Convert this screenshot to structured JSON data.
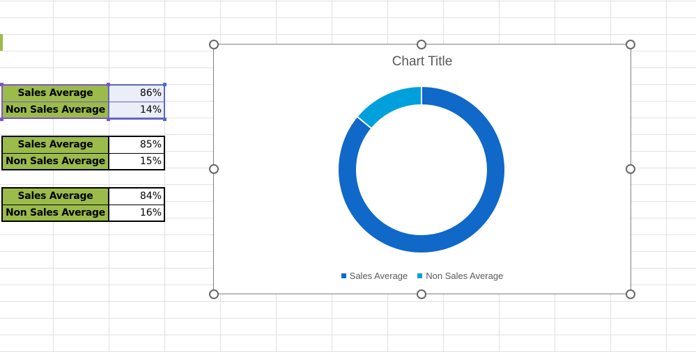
{
  "tables": [
    {
      "selected": true,
      "rows": [
        {
          "label": "Sales Average",
          "value": "86%"
        },
        {
          "label": "Non Sales Average",
          "value": "14%"
        }
      ]
    },
    {
      "selected": false,
      "rows": [
        {
          "label": "Sales Average",
          "value": "85%"
        },
        {
          "label": "Non Sales Average",
          "value": "15%"
        }
      ]
    },
    {
      "selected": false,
      "rows": [
        {
          "label": "Sales Average",
          "value": "84%"
        },
        {
          "label": "Non Sales Average",
          "value": "16%"
        }
      ]
    }
  ],
  "colors": {
    "label_fill": "#9bbb4a",
    "selection_border": "#7b57c9",
    "selected_value_fill": "#e9eef8"
  },
  "chart_data": {
    "type": "pie",
    "variant": "doughnut",
    "title": "Chart Title",
    "categories": [
      "Sales Average",
      "Non Sales Average"
    ],
    "values": [
      86,
      14
    ],
    "colors": [
      "#1068c8",
      "#00a0dc"
    ],
    "legend": "bottom"
  }
}
